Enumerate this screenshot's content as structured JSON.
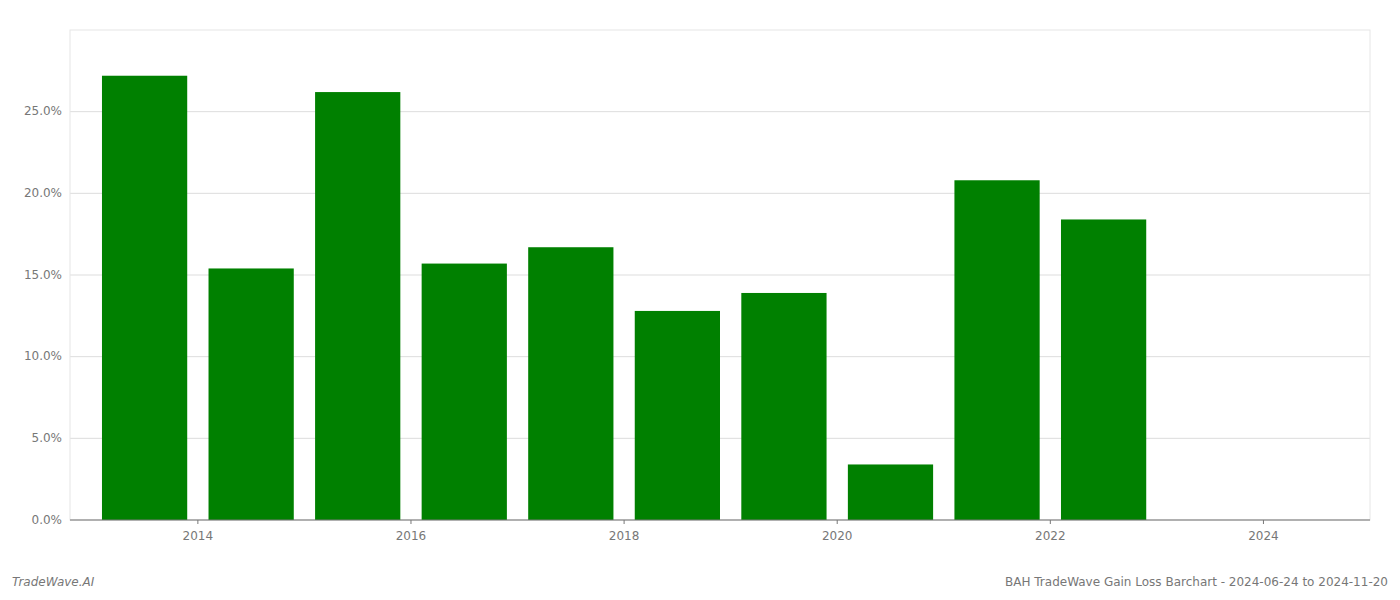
{
  "chart_data": {
    "type": "bar",
    "x": [
      2013.5,
      2014.5,
      2015.5,
      2016.5,
      2017.5,
      2018.5,
      2019.5,
      2020.5,
      2021.5,
      2022.5
    ],
    "values": [
      0.272,
      0.154,
      0.262,
      0.157,
      0.167,
      0.128,
      0.139,
      0.034,
      0.208,
      0.184
    ],
    "color": "#008000",
    "xlim": [
      2012.8,
      2025.0
    ],
    "xticks": [
      2014,
      2016,
      2018,
      2020,
      2022,
      2024
    ],
    "ylim": [
      0,
      0.3
    ],
    "yticks": [
      {
        "value": 0.0,
        "label": "0.0%"
      },
      {
        "value": 0.05,
        "label": "5.0%"
      },
      {
        "value": 0.1,
        "label": "10.0%"
      },
      {
        "value": 0.15,
        "label": "15.0%"
      },
      {
        "value": 0.2,
        "label": "20.0%"
      },
      {
        "value": 0.25,
        "label": "25.0%"
      }
    ],
    "grid": true,
    "annotations": [
      "TradeWave.AI",
      "BAH TradeWave Gain Loss Barchart - 2024-06-24 to 2024-11-20"
    ]
  }
}
